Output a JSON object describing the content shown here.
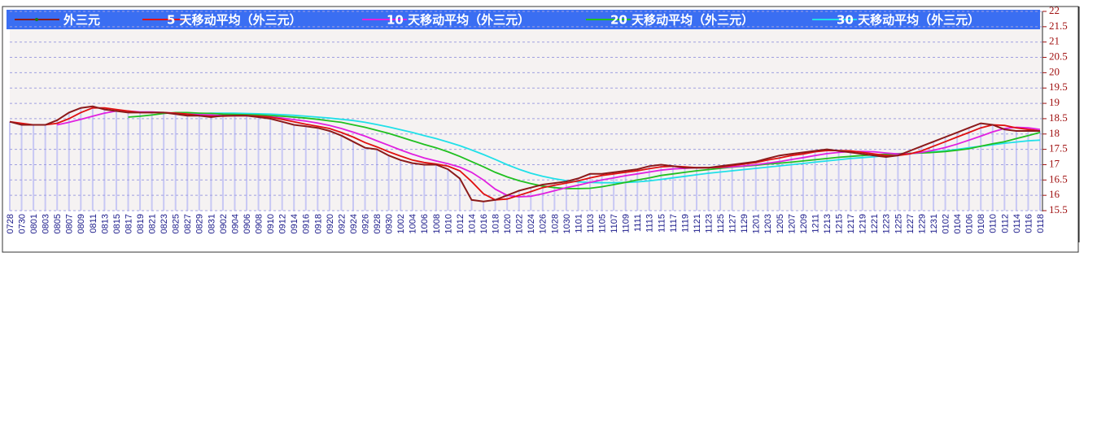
{
  "chart_data": {
    "type": "line",
    "categories": [
      "0728",
      "0730",
      "0801",
      "0803",
      "0805",
      "0807",
      "0809",
      "0811",
      "0813",
      "0815",
      "0817",
      "0819",
      "0821",
      "0823",
      "0825",
      "0827",
      "0829",
      "0831",
      "0902",
      "0904",
      "0906",
      "0908",
      "0910",
      "0912",
      "0914",
      "0916",
      "0918",
      "0920",
      "0922",
      "0924",
      "0926",
      "0928",
      "0930",
      "1002",
      "1004",
      "1006",
      "1008",
      "1010",
      "1012",
      "1014",
      "1016",
      "1018",
      "1020",
      "1022",
      "1024",
      "1026",
      "1028",
      "1030",
      "1101",
      "1103",
      "1105",
      "1107",
      "1109",
      "1111",
      "1113",
      "1115",
      "1117",
      "1119",
      "1121",
      "1123",
      "1125",
      "1127",
      "1129",
      "1201",
      "1203",
      "1205",
      "1207",
      "1209",
      "1211",
      "1213",
      "1215",
      "1217",
      "1219",
      "1221",
      "1223",
      "1225",
      "1227",
      "1229",
      "1231",
      "0102",
      "0104",
      "0106",
      "0108",
      "0110",
      "0112",
      "0114",
      "0116",
      "0118"
    ],
    "series": [
      {
        "name": "外三元",
        "color": "#8b1a1a",
        "values": [
          18.4,
          18.3,
          18.3,
          18.3,
          18.45,
          18.7,
          18.85,
          18.9,
          18.8,
          18.75,
          18.7,
          18.7,
          18.7,
          18.7,
          18.65,
          18.6,
          18.6,
          18.55,
          18.6,
          18.6,
          18.6,
          18.55,
          18.5,
          18.4,
          18.3,
          18.25,
          18.2,
          18.1,
          17.95,
          17.75,
          17.55,
          17.5,
          17.3,
          17.15,
          17.05,
          17.0,
          17.0,
          16.85,
          16.55,
          15.85,
          15.8,
          15.85,
          16.0,
          16.15,
          16.25,
          16.35,
          16.4,
          16.45,
          16.55,
          16.7,
          16.7,
          16.75,
          16.8,
          16.85,
          16.95,
          17.0,
          16.95,
          16.9,
          16.9,
          16.9,
          16.95,
          17.0,
          17.05,
          17.1,
          17.2,
          17.3,
          17.35,
          17.4,
          17.45,
          17.5,
          17.45,
          17.4,
          17.35,
          17.3,
          17.25,
          17.3,
          17.45,
          17.6,
          17.75,
          17.9,
          18.05,
          18.2,
          18.35,
          18.3,
          18.15,
          18.1,
          18.1,
          18.1
        ]
      },
      {
        "name": "5 天移动平均（外三元）",
        "color": "#e01010",
        "values": [
          18.4,
          18.35,
          18.3,
          18.3,
          18.35,
          18.5,
          18.7,
          18.85,
          18.85,
          18.8,
          18.75,
          18.7,
          18.7,
          18.7,
          18.68,
          18.65,
          18.6,
          18.58,
          18.58,
          18.6,
          18.6,
          18.58,
          18.55,
          18.48,
          18.4,
          18.32,
          18.25,
          18.18,
          18.05,
          17.9,
          17.72,
          17.58,
          17.42,
          17.28,
          17.15,
          17.07,
          17.02,
          16.95,
          16.8,
          16.45,
          16.05,
          15.85,
          15.88,
          16.0,
          16.12,
          16.25,
          16.33,
          16.4,
          16.47,
          16.57,
          16.65,
          16.7,
          16.75,
          16.8,
          16.87,
          16.93,
          16.95,
          16.93,
          16.9,
          16.9,
          16.92,
          16.97,
          17.02,
          17.07,
          17.15,
          17.22,
          17.3,
          17.35,
          17.42,
          17.46,
          17.46,
          17.45,
          17.4,
          17.35,
          17.3,
          17.3,
          17.35,
          17.45,
          17.6,
          17.75,
          17.9,
          18.05,
          18.2,
          18.3,
          18.28,
          18.2,
          18.15,
          18.1
        ]
      },
      {
        "name": "10 天移动平均（外三元）",
        "color": "#e020e0",
        "values": [
          null,
          null,
          null,
          null,
          18.3,
          18.38,
          18.48,
          18.58,
          18.68,
          18.75,
          18.75,
          18.72,
          18.72,
          18.7,
          18.68,
          18.65,
          18.63,
          18.62,
          18.6,
          18.6,
          18.6,
          18.58,
          18.56,
          18.52,
          18.47,
          18.42,
          18.36,
          18.28,
          18.18,
          18.06,
          17.93,
          17.78,
          17.63,
          17.48,
          17.34,
          17.22,
          17.12,
          17.03,
          16.92,
          16.75,
          16.5,
          16.2,
          16.0,
          15.95,
          15.97,
          16.05,
          16.15,
          16.25,
          16.33,
          16.42,
          16.5,
          16.57,
          16.64,
          16.7,
          16.76,
          16.82,
          16.86,
          16.88,
          16.9,
          16.9,
          16.91,
          16.93,
          16.96,
          17.0,
          17.05,
          17.1,
          17.17,
          17.23,
          17.3,
          17.36,
          17.4,
          17.43,
          17.43,
          17.42,
          17.38,
          17.35,
          17.36,
          17.4,
          17.47,
          17.56,
          17.67,
          17.8,
          17.93,
          18.07,
          18.18,
          18.22,
          18.2,
          18.15
        ]
      },
      {
        "name": "20 天移动平均（外三元）",
        "color": "#20c020",
        "values": [
          null,
          null,
          null,
          null,
          null,
          null,
          null,
          null,
          null,
          null,
          18.55,
          18.58,
          18.62,
          18.67,
          18.7,
          18.7,
          18.68,
          18.67,
          18.65,
          18.64,
          18.63,
          18.62,
          18.6,
          18.58,
          18.55,
          18.52,
          18.48,
          18.43,
          18.38,
          18.3,
          18.22,
          18.12,
          18.02,
          17.9,
          17.78,
          17.66,
          17.55,
          17.42,
          17.27,
          17.1,
          16.93,
          16.75,
          16.6,
          16.48,
          16.38,
          16.3,
          16.25,
          16.22,
          16.22,
          16.23,
          16.28,
          16.35,
          16.42,
          16.5,
          16.57,
          16.65,
          16.7,
          16.75,
          16.8,
          16.84,
          16.88,
          16.92,
          16.95,
          16.98,
          17.02,
          17.05,
          17.08,
          17.12,
          17.16,
          17.2,
          17.24,
          17.27,
          17.3,
          17.32,
          17.34,
          17.36,
          17.37,
          17.38,
          17.4,
          17.43,
          17.47,
          17.52,
          17.6,
          17.68,
          17.75,
          17.85,
          17.95,
          18.05
        ]
      },
      {
        "name": "30 天移动平均（外三元）",
        "color": "#20e0e8",
        "values": [
          null,
          null,
          null,
          null,
          null,
          null,
          null,
          null,
          null,
          null,
          null,
          null,
          null,
          null,
          null,
          18.65,
          18.67,
          18.68,
          18.68,
          18.68,
          18.67,
          18.66,
          18.65,
          18.63,
          18.61,
          18.58,
          18.55,
          18.52,
          18.48,
          18.44,
          18.38,
          18.31,
          18.23,
          18.14,
          18.05,
          17.95,
          17.85,
          17.74,
          17.62,
          17.48,
          17.33,
          17.17,
          17.0,
          16.85,
          16.72,
          16.62,
          16.54,
          16.48,
          16.44,
          16.42,
          16.41,
          16.41,
          16.42,
          16.44,
          16.47,
          16.52,
          16.57,
          16.62,
          16.67,
          16.72,
          16.76,
          16.8,
          16.84,
          16.88,
          16.92,
          16.96,
          17.0,
          17.04,
          17.08,
          17.12,
          17.16,
          17.2,
          17.23,
          17.26,
          17.3,
          17.33,
          17.36,
          17.39,
          17.42,
          17.45,
          17.5,
          17.55,
          17.6,
          17.65,
          17.7,
          17.74,
          17.78,
          17.8
        ]
      }
    ],
    "ylim": [
      15.5,
      22
    ],
    "yticks": [
      15.5,
      16,
      16.5,
      17,
      17.5,
      18,
      18.5,
      19,
      19.5,
      20,
      20.5,
      21,
      21.5,
      22
    ],
    "grid": true,
    "bar_color": "#c8c8f4"
  }
}
